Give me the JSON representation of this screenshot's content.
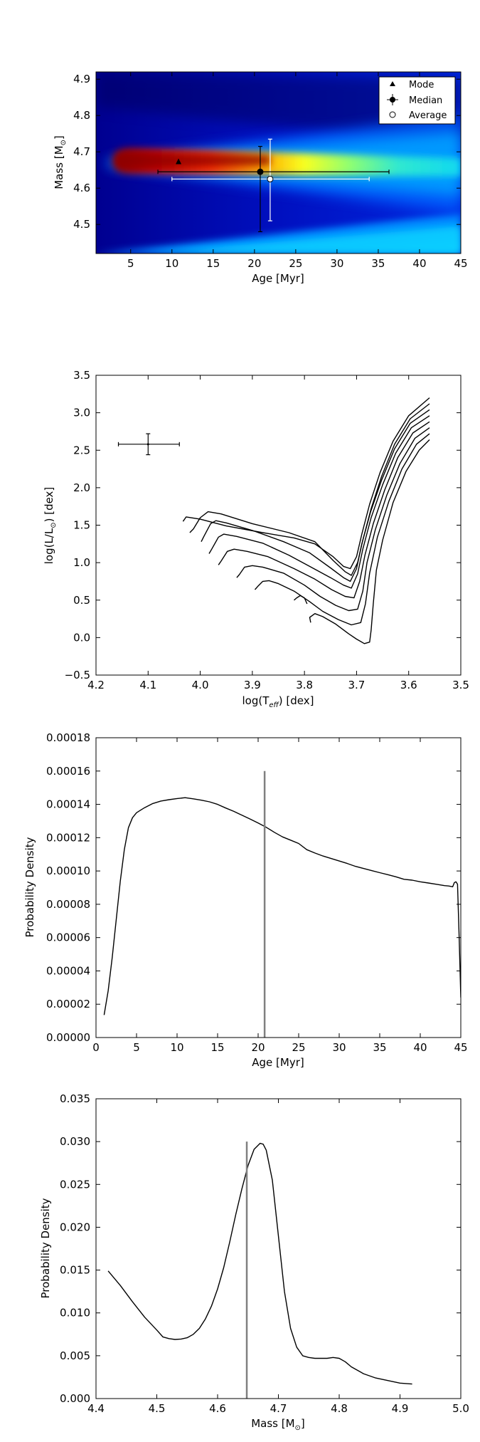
{
  "chart_data": [
    {
      "id": "mass_age_map",
      "type": "heatmap",
      "xlabel": "Age [Myr]",
      "ylabel": "Mass [M",
      "ylabel_symbol": "⊙",
      "ylabel_end": "]",
      "xlim": [
        0.8,
        45
      ],
      "ylim": [
        4.42,
        4.92
      ],
      "xticks": [
        5,
        10,
        15,
        20,
        25,
        30,
        35,
        40,
        45
      ],
      "yticks": [
        4.5,
        4.6,
        4.7,
        4.8,
        4.9
      ],
      "colormap": "jet",
      "ridge_mass": 4.665,
      "legend_position": "top-right",
      "legend": [
        {
          "label": "Mode",
          "marker": "triangle"
        },
        {
          "label": "Median",
          "marker": "circle-filled"
        },
        {
          "label": "Average",
          "marker": "circle-open"
        }
      ],
      "points": {
        "mode": {
          "age": 10.8,
          "mass": 4.672
        },
        "median": {
          "age": 20.7,
          "mass": 4.645,
          "age_err": [
            8.3,
            36.3
          ],
          "mass_err": [
            4.48,
            4.715
          ]
        },
        "average": {
          "age": 21.9,
          "mass": 4.625,
          "age_err": [
            10.0,
            33.9
          ],
          "mass_err": [
            4.51,
            4.735
          ]
        }
      }
    },
    {
      "id": "hr_diagram",
      "type": "line",
      "xlabel": "log(T",
      "xlabel_sub": "eff",
      "xlabel_end": ") [dex]",
      "ylabel": "log(L/L",
      "ylabel_symbol": "⊙",
      "ylabel_end": ") [dex]",
      "xlim": [
        4.2,
        3.5
      ],
      "ylim": [
        -0.5,
        3.5
      ],
      "xticks": [
        "4.2",
        "4.1",
        "4.0",
        "3.9",
        "3.8",
        "3.7",
        "3.6",
        "3.5"
      ],
      "yticks": [
        "−0.5",
        "0.0",
        "0.5",
        "1.0",
        "1.5",
        "2.0",
        "2.5",
        "3.0",
        "3.5"
      ],
      "observed": {
        "logTeff": 4.1,
        "logL": 2.58,
        "teff_err": [
          4.157,
          4.04
        ],
        "l_err": [
          2.44,
          2.72
        ]
      },
      "tracks": [
        [
          [
            4.033,
            1.55
          ],
          [
            4.027,
            1.61
          ],
          [
            4.0,
            1.58
          ],
          [
            3.95,
            1.49
          ],
          [
            3.88,
            1.4
          ],
          [
            3.82,
            1.33
          ],
          [
            3.78,
            1.25
          ],
          [
            3.745,
            1.08
          ],
          [
            3.725,
            0.95
          ],
          [
            3.712,
            0.92
          ],
          [
            3.7,
            1.08
          ],
          [
            3.69,
            1.38
          ],
          [
            3.675,
            1.78
          ],
          [
            3.655,
            2.2
          ],
          [
            3.63,
            2.62
          ],
          [
            3.6,
            2.96
          ],
          [
            3.56,
            3.2
          ]
        ],
        [
          [
            4.02,
            1.4
          ],
          [
            4.013,
            1.45
          ],
          [
            4.0,
            1.6
          ],
          [
            3.985,
            1.68
          ],
          [
            3.96,
            1.65
          ],
          [
            3.9,
            1.52
          ],
          [
            3.83,
            1.4
          ],
          [
            3.78,
            1.28
          ],
          [
            3.745,
            1.03
          ],
          [
            3.722,
            0.88
          ],
          [
            3.71,
            0.83
          ],
          [
            3.698,
            1.0
          ],
          [
            3.688,
            1.3
          ],
          [
            3.672,
            1.72
          ],
          [
            3.652,
            2.15
          ],
          [
            3.627,
            2.58
          ],
          [
            3.597,
            2.92
          ],
          [
            3.56,
            3.12
          ]
        ],
        [
          [
            3.998,
            1.28
          ],
          [
            3.993,
            1.35
          ],
          [
            3.98,
            1.52
          ],
          [
            3.97,
            1.56
          ],
          [
            3.95,
            1.53
          ],
          [
            3.9,
            1.43
          ],
          [
            3.84,
            1.28
          ],
          [
            3.79,
            1.13
          ],
          [
            3.75,
            0.93
          ],
          [
            3.725,
            0.8
          ],
          [
            3.712,
            0.75
          ],
          [
            3.7,
            0.92
          ],
          [
            3.69,
            1.25
          ],
          [
            3.673,
            1.68
          ],
          [
            3.652,
            2.1
          ],
          [
            3.627,
            2.52
          ],
          [
            3.597,
            2.86
          ],
          [
            3.56,
            3.04
          ]
        ],
        [
          [
            3.983,
            1.12
          ],
          [
            3.978,
            1.18
          ],
          [
            3.965,
            1.34
          ],
          [
            3.955,
            1.38
          ],
          [
            3.93,
            1.35
          ],
          [
            3.88,
            1.26
          ],
          [
            3.83,
            1.1
          ],
          [
            3.79,
            0.95
          ],
          [
            3.75,
            0.8
          ],
          [
            3.725,
            0.7
          ],
          [
            3.71,
            0.66
          ],
          [
            3.698,
            0.85
          ],
          [
            3.688,
            1.18
          ],
          [
            3.672,
            1.6
          ],
          [
            3.65,
            2.04
          ],
          [
            3.625,
            2.46
          ],
          [
            3.595,
            2.8
          ],
          [
            3.56,
            2.96
          ]
        ],
        [
          [
            3.965,
            0.97
          ],
          [
            3.96,
            1.02
          ],
          [
            3.948,
            1.15
          ],
          [
            3.935,
            1.18
          ],
          [
            3.91,
            1.15
          ],
          [
            3.87,
            1.08
          ],
          [
            3.82,
            0.92
          ],
          [
            3.78,
            0.78
          ],
          [
            3.748,
            0.64
          ],
          [
            3.722,
            0.55
          ],
          [
            3.705,
            0.53
          ],
          [
            3.694,
            0.75
          ],
          [
            3.684,
            1.1
          ],
          [
            3.668,
            1.52
          ],
          [
            3.646,
            1.97
          ],
          [
            3.621,
            2.4
          ],
          [
            3.592,
            2.73
          ],
          [
            3.56,
            2.88
          ]
        ],
        [
          [
            3.93,
            0.8
          ],
          [
            3.925,
            0.84
          ],
          [
            3.915,
            0.94
          ],
          [
            3.9,
            0.96
          ],
          [
            3.88,
            0.94
          ],
          [
            3.84,
            0.86
          ],
          [
            3.8,
            0.7
          ],
          [
            3.77,
            0.55
          ],
          [
            3.74,
            0.43
          ],
          [
            3.715,
            0.36
          ],
          [
            3.698,
            0.38
          ],
          [
            3.688,
            0.62
          ],
          [
            3.68,
            1.0
          ],
          [
            3.664,
            1.44
          ],
          [
            3.642,
            1.9
          ],
          [
            3.617,
            2.32
          ],
          [
            3.588,
            2.66
          ],
          [
            3.56,
            2.8
          ]
        ],
        [
          [
            3.895,
            0.64
          ],
          [
            3.89,
            0.68
          ],
          [
            3.88,
            0.75
          ],
          [
            3.868,
            0.76
          ],
          [
            3.85,
            0.72
          ],
          [
            3.82,
            0.62
          ],
          [
            3.79,
            0.48
          ],
          [
            3.765,
            0.35
          ],
          [
            3.735,
            0.24
          ],
          [
            3.71,
            0.17
          ],
          [
            3.692,
            0.2
          ],
          [
            3.683,
            0.45
          ],
          [
            3.675,
            0.86
          ],
          [
            3.66,
            1.34
          ],
          [
            3.638,
            1.82
          ],
          [
            3.613,
            2.25
          ],
          [
            3.585,
            2.58
          ],
          [
            3.56,
            2.72
          ]
        ],
        [
          [
            3.82,
            0.5
          ],
          [
            3.815,
            0.53
          ],
          [
            3.808,
            0.56
          ],
          [
            3.8,
            0.53
          ],
          [
            3.795,
            0.45
          ]
        ],
        [
          [
            3.788,
            0.2
          ],
          [
            3.79,
            0.27
          ],
          [
            3.78,
            0.32
          ],
          [
            3.765,
            0.28
          ],
          [
            3.74,
            0.18
          ],
          [
            3.715,
            0.05
          ],
          [
            3.7,
            -0.02
          ],
          [
            3.685,
            -0.08
          ],
          [
            3.675,
            -0.06
          ],
          [
            3.672,
            0.1
          ],
          [
            3.668,
            0.45
          ],
          [
            3.662,
            0.9
          ],
          [
            3.65,
            1.3
          ],
          [
            3.63,
            1.8
          ],
          [
            3.605,
            2.22
          ],
          [
            3.58,
            2.5
          ],
          [
            3.56,
            2.64
          ]
        ]
      ]
    },
    {
      "id": "age_pdf",
      "type": "line",
      "xlabel": "Age [Myr]",
      "ylabel": "Probability Density",
      "xlim": [
        0,
        45
      ],
      "ylim": [
        0,
        0.00018
      ],
      "xticks": [
        "0",
        "5",
        "10",
        "15",
        "20",
        "25",
        "30",
        "35",
        "40",
        "45"
      ],
      "yticks": [
        "0.00000",
        "0.00002",
        "0.00004",
        "0.00006",
        "0.00008",
        "0.00010",
        "0.00012",
        "0.00014",
        "0.00016",
        "0.00018"
      ],
      "vline": {
        "x": 20.8,
        "y_top": 0.00016
      },
      "x": [
        1.0,
        1.5,
        2.0,
        2.5,
        3.0,
        3.5,
        4.0,
        4.5,
        5.0,
        5.5,
        6.0,
        7.0,
        8.0,
        9.0,
        10.0,
        11.0,
        12.0,
        13.0,
        14.0,
        15.0,
        16.0,
        17.0,
        18.0,
        19.0,
        20.0,
        21.0,
        22.0,
        23.0,
        24.0,
        25.0,
        26.0,
        27.0,
        28.0,
        29.0,
        30.0,
        31.0,
        32.0,
        33.0,
        34.0,
        35.0,
        36.0,
        37.0,
        38.0,
        39.0,
        40.0,
        41.0,
        42.0,
        43.0,
        43.5,
        44.0,
        44.2,
        44.4,
        44.6,
        44.8,
        45.0
      ],
      "y": [
        1.35e-05,
        2.8e-05,
        4.8e-05,
        7.1e-05,
        9.4e-05,
        0.000113,
        0.000126,
        0.000132,
        0.000135,
        0.0001365,
        0.000138,
        0.0001405,
        0.000142,
        0.0001428,
        0.0001435,
        0.000144,
        0.0001433,
        0.0001425,
        0.0001415,
        0.00014,
        0.0001378,
        0.0001358,
        0.0001335,
        0.0001312,
        0.0001288,
        0.0001262,
        0.0001232,
        0.0001205,
        0.0001185,
        0.0001165,
        0.0001128,
        0.0001108,
        0.000109,
        0.0001075,
        0.000106,
        0.0001045,
        0.0001028,
        0.0001015,
        0.0001002,
        9.9e-05,
        9.78e-05,
        9.65e-05,
        9.5e-05,
        9.45e-05,
        9.35e-05,
        9.28e-05,
        9.2e-05,
        9.12e-05,
        9.1e-05,
        9.05e-05,
        9.3e-05,
        9.35e-05,
        9.2e-05,
        6e-05,
        2.4e-05
      ]
    },
    {
      "id": "mass_pdf",
      "type": "line",
      "xlabel": "Mass [M",
      "xlabel_symbol": "⊙",
      "xlabel_end": "]",
      "ylabel": "Probability Density",
      "xlim": [
        4.4,
        5.0
      ],
      "ylim": [
        0,
        0.035
      ],
      "xticks": [
        "4.4",
        "4.5",
        "4.6",
        "4.7",
        "4.8",
        "4.9",
        "5.0"
      ],
      "yticks": [
        "0.000",
        "0.005",
        "0.010",
        "0.015",
        "0.020",
        "0.025",
        "0.030",
        "0.035"
      ],
      "vline": {
        "x": 4.648,
        "y_top": 0.03
      },
      "x": [
        4.42,
        4.44,
        4.46,
        4.48,
        4.5,
        4.51,
        4.52,
        4.53,
        4.54,
        4.55,
        4.56,
        4.57,
        4.58,
        4.59,
        4.6,
        4.61,
        4.62,
        4.63,
        4.64,
        4.65,
        4.66,
        4.67,
        4.675,
        4.68,
        4.69,
        4.7,
        4.71,
        4.72,
        4.73,
        4.74,
        4.75,
        4.76,
        4.77,
        4.78,
        4.79,
        4.8,
        4.81,
        4.82,
        4.84,
        4.86,
        4.88,
        4.9,
        4.92
      ],
      "y": [
        0.0149,
        0.0132,
        0.0113,
        0.0095,
        0.008,
        0.0072,
        0.007,
        0.0069,
        0.00695,
        0.0071,
        0.0075,
        0.0082,
        0.0093,
        0.0108,
        0.0128,
        0.0153,
        0.0183,
        0.0215,
        0.0245,
        0.0272,
        0.0291,
        0.0298,
        0.0297,
        0.029,
        0.0255,
        0.019,
        0.0125,
        0.0082,
        0.006,
        0.005,
        0.0048,
        0.0047,
        0.0047,
        0.0047,
        0.0048,
        0.0047,
        0.0043,
        0.0037,
        0.0029,
        0.0024,
        0.0021,
        0.0018,
        0.0017
      ]
    }
  ]
}
